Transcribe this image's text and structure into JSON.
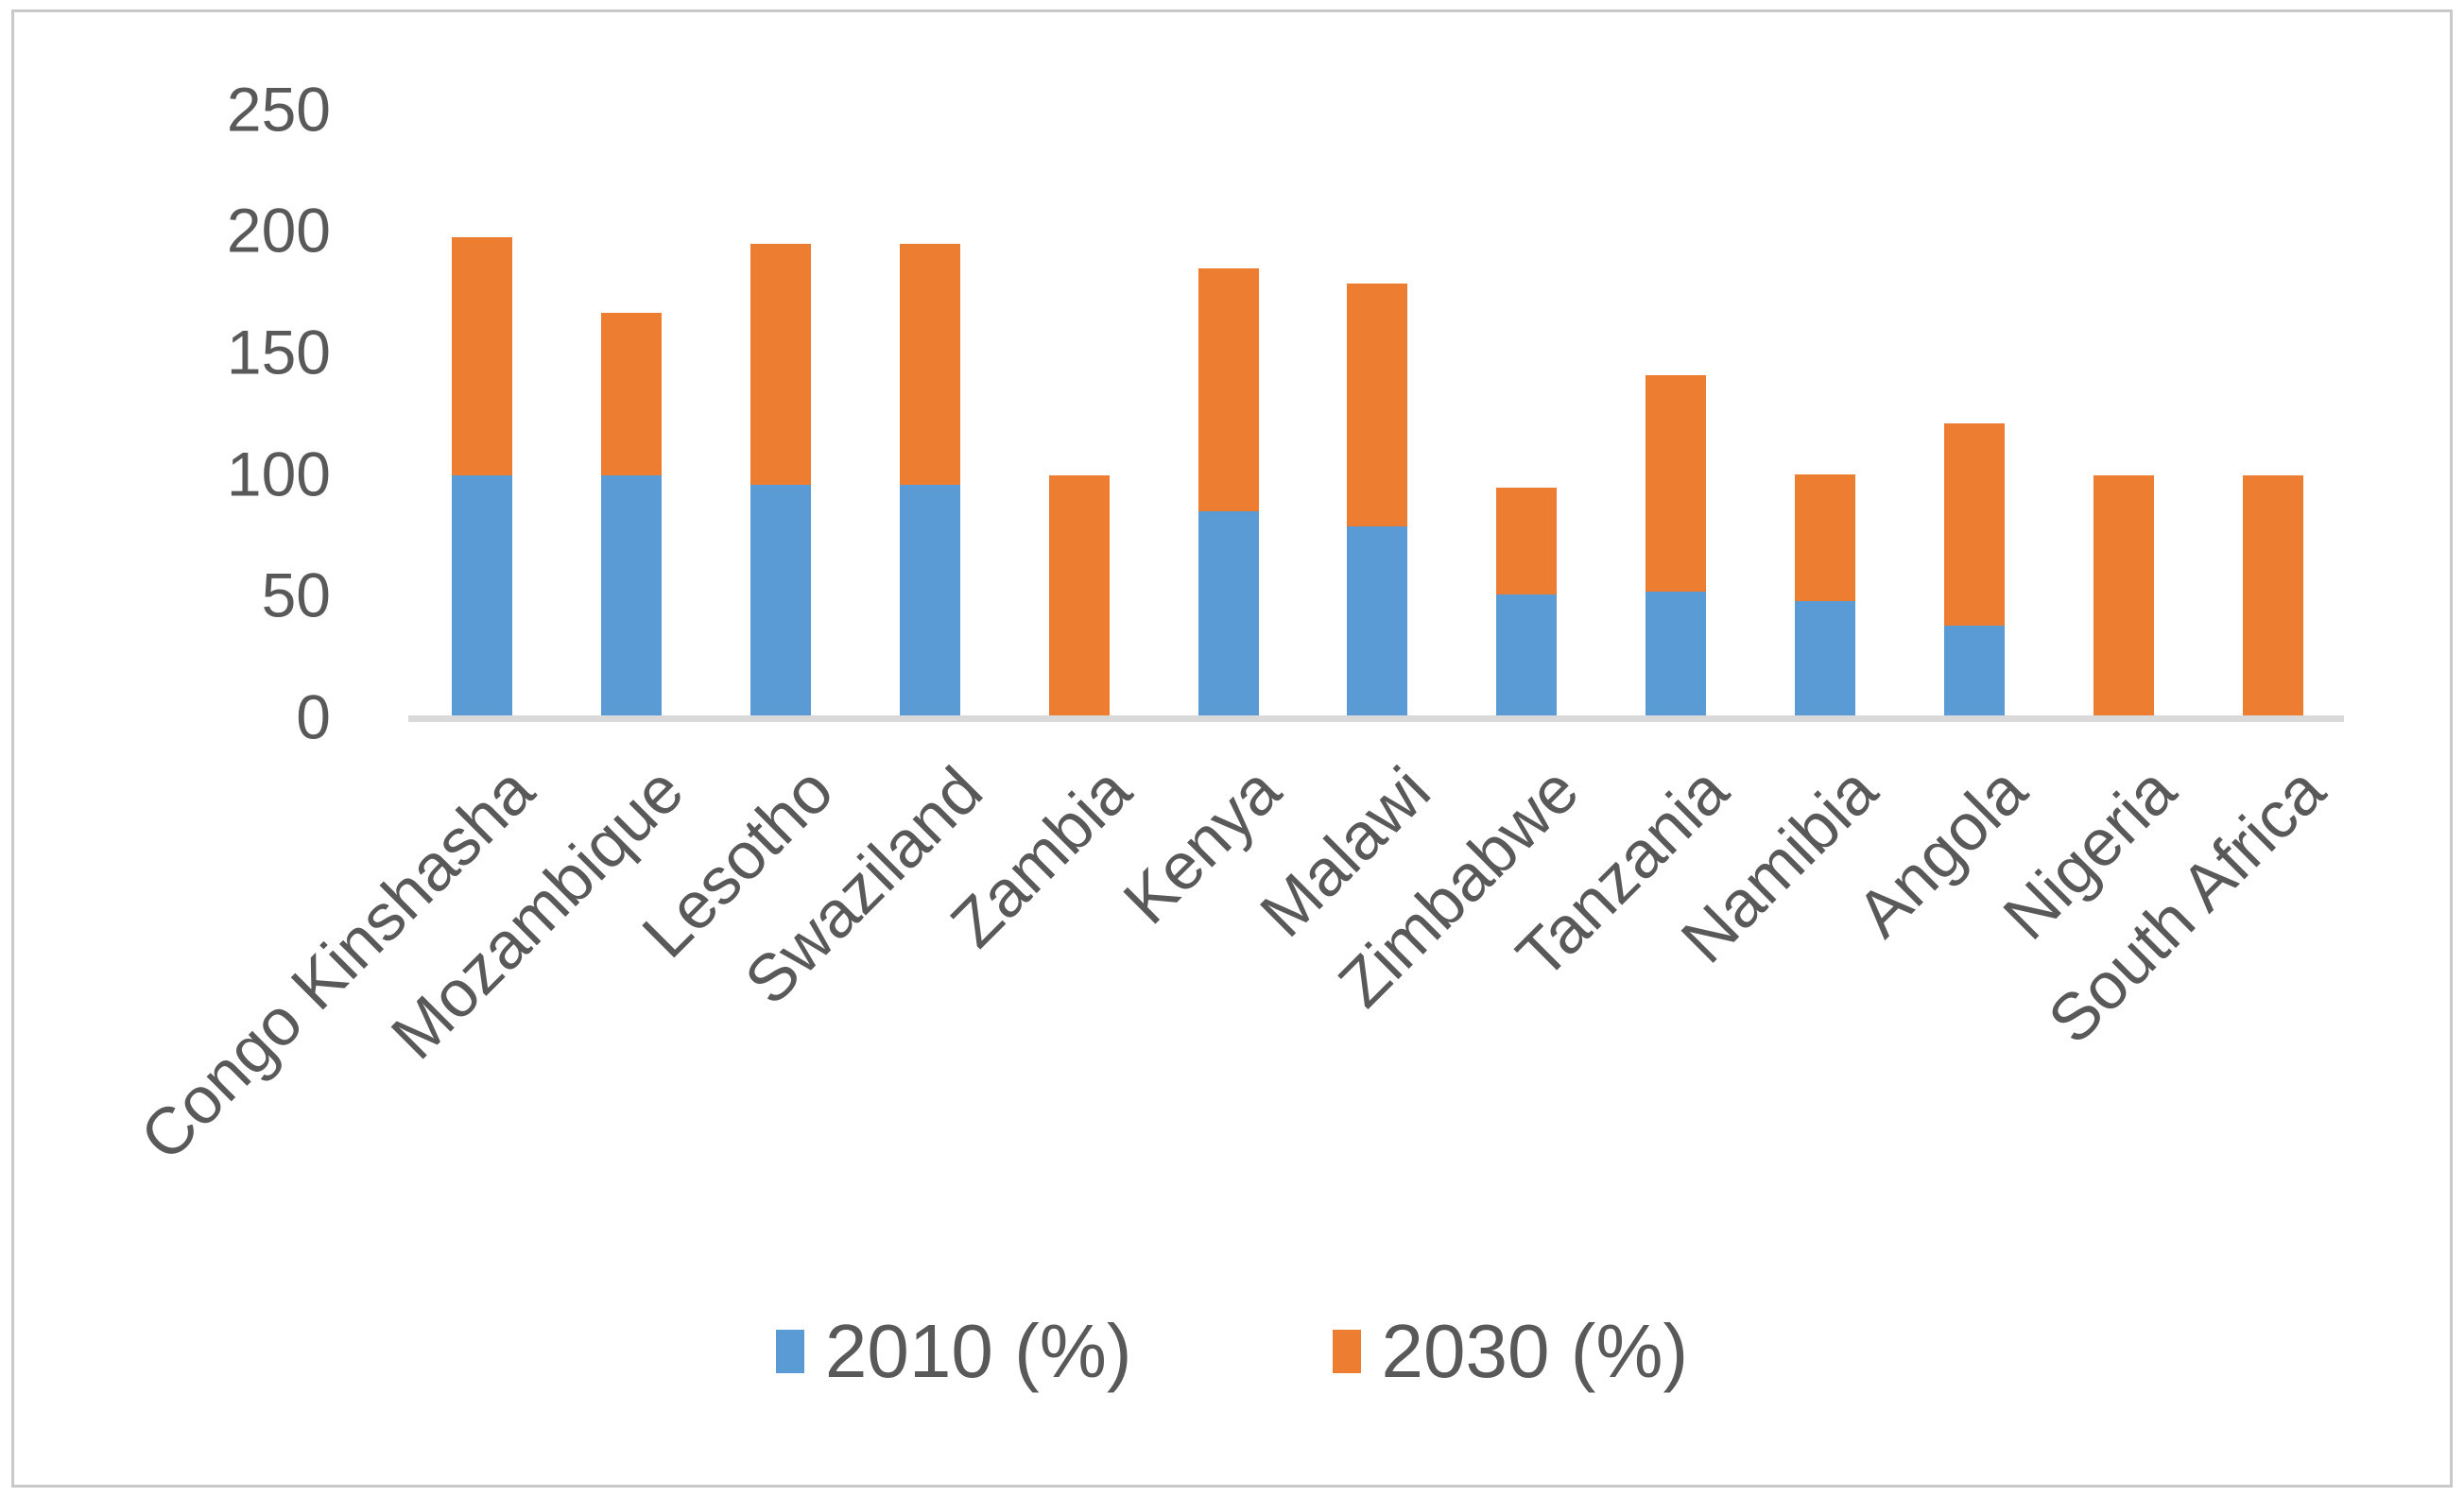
{
  "chart_data": {
    "type": "bar",
    "stacked": true,
    "title": "",
    "xlabel": "",
    "ylabel": "",
    "categories": [
      "Congo Kinshasha",
      "Mozambique",
      "Lesotho",
      "Swaziland",
      "Zambia",
      "Kenya",
      "Malawi",
      "Zimbabwe",
      "Tanzania",
      "Namibia",
      "Angola",
      "Nigeria",
      "South Africa"
    ],
    "series": [
      {
        "name": "2010 (%)",
        "color": "#5B9BD5",
        "values": [
          100,
          100,
          96,
          96,
          0,
          85,
          79,
          51,
          52,
          48,
          38,
          0,
          0
        ]
      },
      {
        "name": "2030 (%)",
        "color": "#ED7D31",
        "values": [
          98,
          67,
          99,
          99,
          100,
          100,
          100,
          44,
          89,
          52,
          83,
          100,
          100
        ]
      }
    ],
    "ylim": [
      0,
      250
    ],
    "y_ticks": [
      0,
      50,
      100,
      150,
      200,
      250
    ],
    "gridlines": false,
    "legend_position": "bottom-center"
  },
  "colors": {
    "axis_line": "#D9D9D9",
    "tick_text": "#595959",
    "border": "#C9C9C9",
    "background": "#FFFFFF"
  }
}
